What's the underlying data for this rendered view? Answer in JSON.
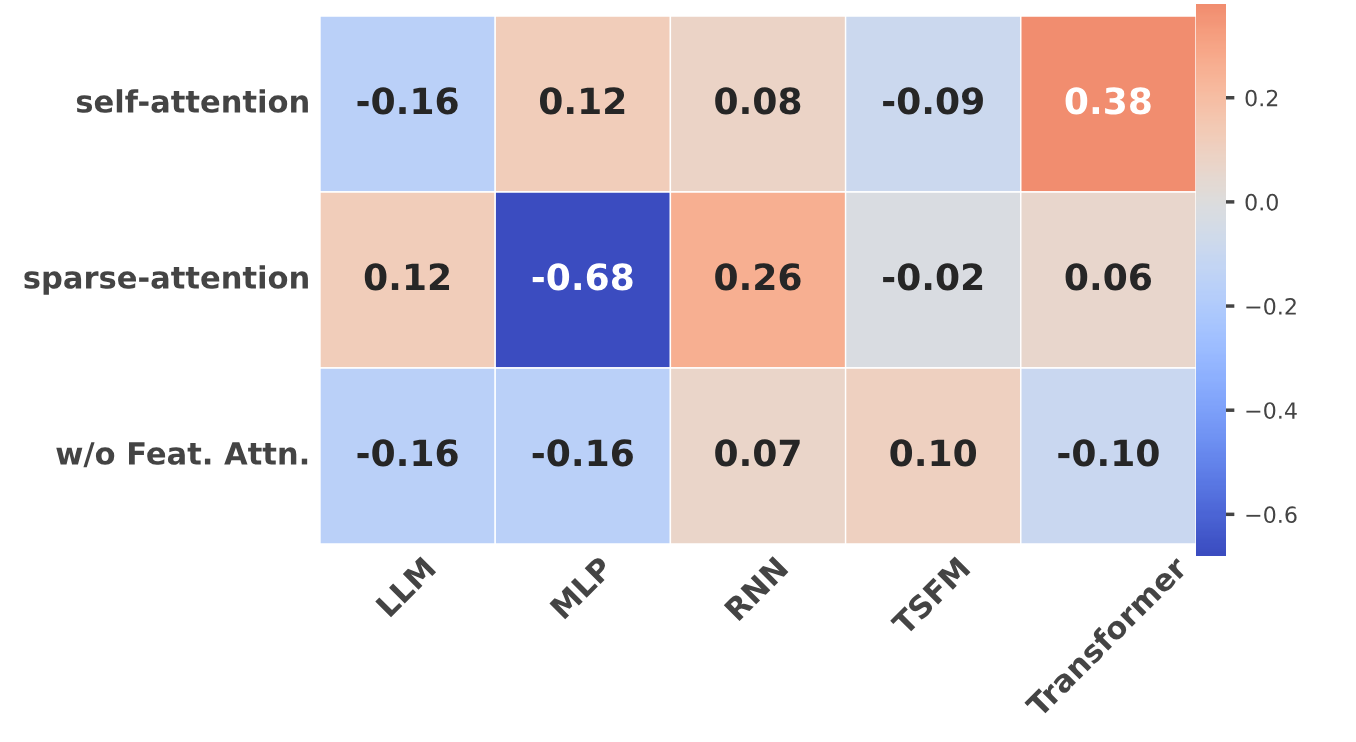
{
  "chart_data": {
    "type": "heatmap",
    "categories": [
      "LLM",
      "MLP",
      "RNN",
      "TSFM",
      "Transformer"
    ],
    "y_categories": [
      "self-attention",
      "sparse-attention",
      "w/o Feat. Attn."
    ],
    "cells": [
      [
        -0.16,
        0.12,
        0.08,
        -0.09,
        0.38
      ],
      [
        0.12,
        -0.68,
        0.26,
        -0.02,
        0.06
      ],
      [
        -0.16,
        -0.16,
        0.07,
        0.1,
        -0.1
      ]
    ],
    "cell_labels": [
      [
        "-0.16",
        "0.12",
        "0.08",
        "-0.09",
        "0.38"
      ],
      [
        "0.12",
        "-0.68",
        "0.26",
        "-0.02",
        "0.06"
      ],
      [
        "-0.16",
        "-0.16",
        "0.07",
        "0.10",
        "-0.10"
      ]
    ],
    "clim": [
      -0.68,
      0.38
    ],
    "cticks": [
      {
        "value": -0.6,
        "label": "−0.6"
      },
      {
        "value": -0.4,
        "label": "−0.4"
      },
      {
        "value": -0.2,
        "label": "−0.2"
      },
      {
        "value": 0.0,
        "label": "0.0"
      },
      {
        "value": 0.2,
        "label": "0.2"
      }
    ]
  }
}
